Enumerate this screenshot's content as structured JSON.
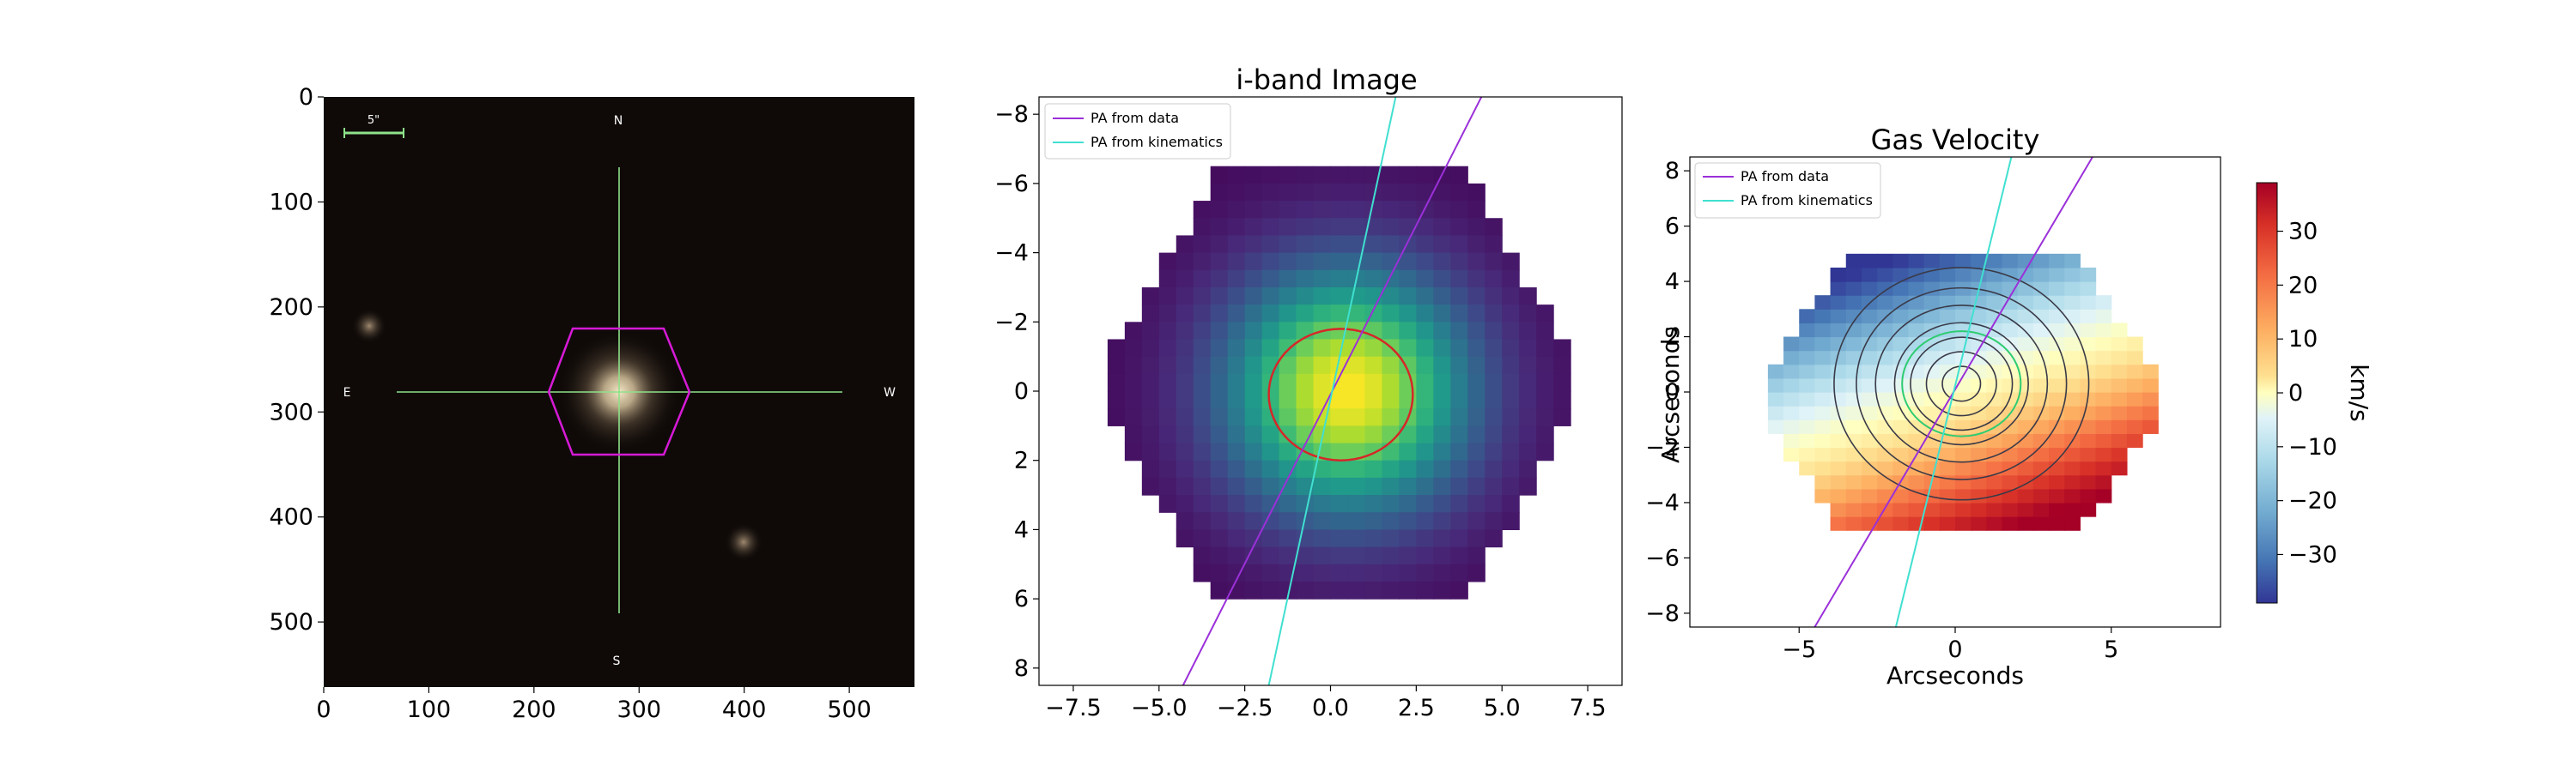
{
  "panels": [
    {
      "id": "sdss",
      "chart_data": {
        "type": "image",
        "title": "",
        "xlim": [
          0,
          562
        ],
        "ylim": [
          562,
          0
        ],
        "xticks": [
          0,
          100,
          200,
          300,
          400,
          500
        ],
        "yticks": [
          0,
          100,
          200,
          300,
          400,
          500
        ],
        "scale_bar_label": "5\"",
        "compass": {
          "north": "N",
          "south": "S",
          "east": "E",
          "west": "W"
        },
        "galaxy_center": [
          281,
          281
        ],
        "ifu_footprint": "hexagon",
        "colors": {
          "background": "#0f0a08",
          "hexagon": "#d61ad6",
          "crosshair": "#8ee28a",
          "scale_bar": "#8ee28a"
        }
      }
    },
    {
      "id": "iband",
      "chart_data": {
        "type": "heatmap",
        "title": "i-band Image",
        "xlabel": "",
        "ylabel": "",
        "xlim": [
          -8.5,
          8.5
        ],
        "ylim": [
          8.5,
          -8.5
        ],
        "xticks": [
          -7.5,
          -5.0,
          -2.5,
          0.0,
          2.5,
          5.0,
          7.5
        ],
        "yticks": [
          -8,
          -6,
          -4,
          -2,
          0,
          2,
          4,
          6,
          8
        ],
        "colormap": "viridis",
        "peak": [
          0.5,
          0.0
        ],
        "ellipse": {
          "center": [
            0.3,
            0.1
          ],
          "rx": 2.1,
          "ry": 1.9,
          "color": "#d62728"
        },
        "legend": [
          {
            "label": "PA from data",
            "color": "#9b30d9"
          },
          {
            "label": "PA from kinematics",
            "color": "#40e0d0"
          }
        ],
        "lines": [
          {
            "name": "PA from data",
            "points": [
              [
                -4.3,
                8.5
              ],
              [
                4.4,
                -8.5
              ]
            ]
          },
          {
            "name": "PA from kinematics",
            "points": [
              [
                -1.8,
                8.5
              ],
              [
                1.9,
                -8.5
              ]
            ]
          }
        ]
      }
    },
    {
      "id": "gasvel",
      "chart_data": {
        "type": "heatmap",
        "title": "Gas Velocity",
        "xlabel": "Arcseconds",
        "ylabel": "Arcseconds",
        "xlim": [
          -8.5,
          8.5
        ],
        "ylim": [
          -8.5,
          8.5
        ],
        "xticks": [
          -5,
          0,
          5
        ],
        "yticks": [
          8,
          6,
          4,
          2,
          0,
          -2,
          -4,
          -6,
          -8
        ],
        "colormap": "RdYlBu_r",
        "colorbar": {
          "label": "km/s",
          "range": [
            -39,
            39
          ],
          "ticks": [
            30,
            20,
            10,
            0,
            -10,
            -20,
            -30
          ]
        },
        "contour_center": [
          0.2,
          0.3
        ],
        "legend": [
          {
            "label": "PA from data",
            "color": "#9b30d9"
          },
          {
            "label": "PA from kinematics",
            "color": "#40e0d0"
          }
        ],
        "lines": [
          {
            "name": "PA from data",
            "points": [
              [
                -4.5,
                -8.5
              ],
              [
                4.4,
                8.5
              ]
            ]
          },
          {
            "name": "PA from kinematics",
            "points": [
              [
                -1.9,
                -8.5
              ],
              [
                1.8,
                8.5
              ]
            ]
          }
        ]
      }
    }
  ],
  "tick_format": {
    "p1_x": [
      "0",
      "100",
      "200",
      "300",
      "400",
      "500"
    ],
    "p1_y": [
      "0",
      "100",
      "200",
      "300",
      "400",
      "500"
    ],
    "p2_x": [
      "−7.5",
      "−5.0",
      "−2.5",
      "0.0",
      "2.5",
      "5.0",
      "7.5"
    ],
    "p2_y": [
      "−8",
      "−6",
      "−4",
      "−2",
      "0",
      "2",
      "4",
      "6",
      "8"
    ],
    "p3_x": [
      "−5",
      "0",
      "5"
    ],
    "p3_y": [
      "8",
      "6",
      "4",
      "2",
      "0",
      "−2",
      "−4",
      "−6",
      "−8"
    ],
    "cb": [
      "30",
      "20",
      "10",
      "0",
      "−10",
      "−20",
      "−30"
    ]
  }
}
